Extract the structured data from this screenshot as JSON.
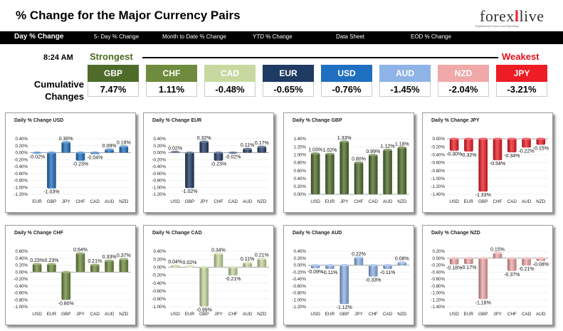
{
  "header": {
    "title": "% Change for the Major Currency Pairs",
    "logo_text_a": "forex",
    "logo_text_x": "l",
    "logo_text_b": "live",
    "logo_tagline": "Experienced Forex Live Reporting"
  },
  "nav": {
    "items": [
      "Day % Change",
      "5- Day % Change",
      "Month to Date % Change",
      "YTD % Change",
      "Data Sheet",
      "EOD % Change"
    ]
  },
  "summary": {
    "time": "8:24 AM",
    "strongest": "Strongest",
    "weakest": "Weakest",
    "label": "Cumulative Changes",
    "currencies": [
      {
        "code": "GBP",
        "value": "7.47%",
        "color": "#4e6b2a"
      },
      {
        "code": "CHF",
        "value": "1.11%",
        "color": "#6f8b3d"
      },
      {
        "code": "CAD",
        "value": "-0.48%",
        "color": "#c7d9a0"
      },
      {
        "code": "EUR",
        "value": "-0.65%",
        "color": "#1f3a63"
      },
      {
        "code": "USD",
        "value": "-0.76%",
        "color": "#1f6fc0"
      },
      {
        "code": "AUD",
        "value": "-1.45%",
        "color": "#8eb3e6"
      },
      {
        "code": "NZD",
        "value": "-2.04%",
        "color": "#f0a8a8"
      },
      {
        "code": "JPY",
        "value": "-3.21%",
        "color": "#ee1c24"
      }
    ]
  },
  "chart_data": [
    {
      "type": "bar",
      "title": "Daily % Change USD",
      "categories": [
        "EUR",
        "GBP",
        "JPY",
        "CHF",
        "CAD",
        "AUD",
        "NZD"
      ],
      "values": [
        -0.02,
        -1.03,
        0.3,
        -0.23,
        -0.04,
        0.09,
        0.18
      ],
      "labels": [
        "-0.02%",
        "-1.03%",
        "0.30%",
        "-0.23%",
        "-0.04%",
        "0.09%",
        "0.18%"
      ],
      "yticks": [
        "0.40%",
        "0.20%",
        "0.00%",
        "-0.20%",
        "-0.40%",
        "-0.60%",
        "-0.80%",
        "-1.00%",
        "-1.20%"
      ],
      "ylim": [
        -1.2,
        0.4
      ],
      "color": "#1f6fc0"
    },
    {
      "type": "bar",
      "title": "Daily % Change EUR",
      "categories": [
        "USD",
        "GBP",
        "JPY",
        "CHF",
        "CAD",
        "AUD",
        "NZD"
      ],
      "values": [
        0.02,
        -1.02,
        0.32,
        -0.23,
        -0.02,
        0.11,
        0.17
      ],
      "labels": [
        "0.02%",
        "-1.02%",
        "0.32%",
        "-0.23%",
        "-0.02%",
        "0.11%",
        "0.17%"
      ],
      "yticks": [
        "0.40%",
        "0.20%",
        "0.00%",
        "-0.20%",
        "-0.40%",
        "-0.60%",
        "-0.80%",
        "-1.00%",
        "-1.20%"
      ],
      "ylim": [
        -1.2,
        0.4
      ],
      "color": "#1f3a63"
    },
    {
      "type": "bar",
      "title": "Daily % Change GBP",
      "categories": [
        "USD",
        "EUR",
        "JPY",
        "CHF",
        "CAD",
        "AUD",
        "NZD"
      ],
      "values": [
        1.03,
        1.02,
        1.33,
        0.8,
        0.99,
        1.12,
        1.18
      ],
      "labels": [
        "1.03%",
        "1.02%",
        "1.33%",
        "0.80%",
        "0.99%",
        "1.12%",
        "1.18%"
      ],
      "yticks": [
        "1.40%",
        "1.20%",
        "1.00%",
        "0.80%",
        "0.60%",
        "0.40%",
        "0.20%",
        "0.00%"
      ],
      "ylim": [
        0,
        1.4
      ],
      "color": "#4e6b2a"
    },
    {
      "type": "bar",
      "title": "Daily % Change JPY",
      "categories": [
        "USD",
        "EUR",
        "GBP",
        "CHF",
        "CAD",
        "AUD",
        "NZD"
      ],
      "values": [
        -0.3,
        -0.32,
        -1.33,
        -0.54,
        -0.34,
        -0.22,
        -0.15
      ],
      "labels": [
        "-0.30%",
        "-0.32%",
        "-1.33%",
        "-0.54%",
        "-0.34%",
        "-0.22%",
        "-0.15%"
      ],
      "yticks": [
        "0.00%",
        "-0.20%",
        "-0.40%",
        "-0.60%",
        "-0.80%",
        "-1.00%",
        "-1.20%",
        "-1.40%"
      ],
      "ylim": [
        -1.4,
        0
      ],
      "color": "#ee1c24"
    },
    {
      "type": "bar",
      "title": "Daily % Change CHF",
      "categories": [
        "USD",
        "EUR",
        "GBP",
        "JPY",
        "CAD",
        "AUD",
        "NZD"
      ],
      "values": [
        0.23,
        0.23,
        -0.8,
        0.54,
        0.21,
        0.33,
        0.37
      ],
      "labels": [
        "0.23%",
        "0.23%",
        "-0.80%",
        "0.54%",
        "0.21%",
        "0.33%",
        "0.37%"
      ],
      "yticks": [
        "0.60%",
        "0.40%",
        "0.20%",
        "0.00%",
        "-0.20%",
        "-0.40%",
        "-0.60%",
        "-0.80%",
        "-1.00%"
      ],
      "ylim": [
        -1.0,
        0.6
      ],
      "color": "#6f8b3d"
    },
    {
      "type": "bar",
      "title": "Daily % Change CAD",
      "categories": [
        "USD",
        "EUR",
        "GBP",
        "JPY",
        "CHF",
        "AUD",
        "NZD"
      ],
      "values": [
        0.04,
        0.02,
        -0.99,
        0.34,
        -0.21,
        0.11,
        0.21
      ],
      "labels": [
        "0.04%",
        "0.02%",
        "-0.99%",
        "0.34%",
        "-0.21%",
        "0.11%",
        "0.21%"
      ],
      "yticks": [
        "0.40%",
        "0.20%",
        "0.00%",
        "-0.20%",
        "-0.40%",
        "-0.60%",
        "-0.80%",
        "-1.00%"
      ],
      "ylim": [
        -1.0,
        0.4
      ],
      "color": "#c7d9a0"
    },
    {
      "type": "bar",
      "title": "Daily % Change AUD",
      "categories": [
        "USD",
        "EUR",
        "GBP",
        "JPY",
        "CHF",
        "CAD",
        "NZD"
      ],
      "values": [
        -0.09,
        -0.11,
        -1.12,
        0.22,
        -0.33,
        -0.11,
        0.08
      ],
      "labels": [
        "-0.09%",
        "-0.11%",
        "-1.12%",
        "0.22%",
        "-0.33%",
        "-0.11%",
        "0.08%"
      ],
      "yticks": [
        "0.40%",
        "0.20%",
        "0.00%",
        "-0.20%",
        "-0.40%",
        "-0.60%",
        "-0.80%",
        "-1.00%",
        "-1.20%"
      ],
      "ylim": [
        -1.2,
        0.4
      ],
      "color": "#8eb3e6"
    },
    {
      "type": "bar",
      "title": "Daily % Change NZD",
      "categories": [
        "USD",
        "EUR",
        "GBP",
        "JPY",
        "CHF",
        "CAD",
        "AUD"
      ],
      "values": [
        -0.18,
        -0.17,
        -1.18,
        0.15,
        -0.37,
        -0.21,
        -0.08
      ],
      "labels": [
        "-0.18%",
        "-0.17%",
        "-1.18%",
        "0.15%",
        "-0.37%",
        "-0.21%",
        "-0.08%"
      ],
      "yticks": [
        "0.20%",
        "0.00%",
        "-0.20%",
        "-0.40%",
        "-0.60%",
        "-0.80%",
        "-1.00%",
        "-1.20%",
        "-1.40%"
      ],
      "ylim": [
        -1.4,
        0.2
      ],
      "color": "#f0a8a8"
    }
  ]
}
